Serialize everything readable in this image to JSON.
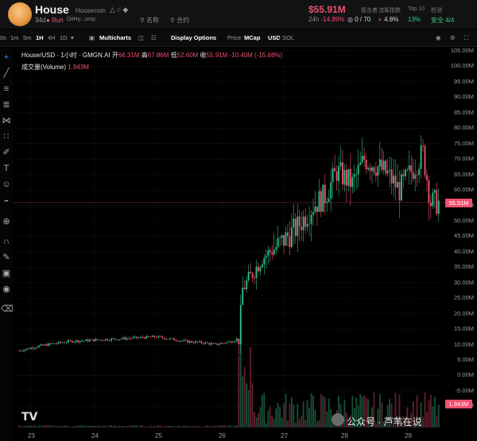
{
  "header": {
    "title": "House",
    "subtitle": "Housecoin",
    "age": "34d",
    "run_label": "Run",
    "address": "DitHy...ump",
    "search_label": "名称",
    "fav_label": "合约",
    "price": "$55.91M",
    "change_label": "24h",
    "change_value": "-14.89%",
    "stats": [
      {
        "label": "狙击者",
        "value": "0 / 70"
      },
      {
        "label": "流筹指数",
        "value": "4.8%"
      },
      {
        "label": "Top 10",
        "value": "13%"
      },
      {
        "label": "检测",
        "value": "安全 4/4"
      }
    ]
  },
  "toolbar": {
    "intervals": [
      "0s",
      "1m",
      "5m",
      "1H",
      "4H",
      "1D"
    ],
    "active_interval": "1H",
    "multicharts": "Multicharts",
    "display_options": "Display Options",
    "price_label": "Price",
    "mcap_label": "MCap",
    "usd_label": "USD",
    "sol_label": "SOL"
  },
  "legend": {
    "pair": "House/USD · 1小时 · GMGN.AI",
    "open_label": "开",
    "open": "66.31M",
    "high_label": "高",
    "high": "67.86M",
    "low_label": "低",
    "low": "52.60M",
    "close_label": "收",
    "close": "55.91M -10.40M (-15.68%)",
    "volume_label": "成交量(Volume)",
    "volume": "1.943M"
  },
  "chart_data": {
    "type": "candlestick",
    "x_ticks": [
      "23",
      "24",
      "25",
      "26",
      "27",
      "28",
      "29"
    ],
    "y_ticks": [
      "105.00M",
      "100.00M",
      "95.00M",
      "90.00M",
      "85.00M",
      "80.00M",
      "75.00M",
      "70.00M",
      "65.00M",
      "60.00M",
      "55.00M",
      "50.00M",
      "45.00M",
      "40.00M",
      "35.00M",
      "30.00M",
      "25.00M",
      "20.00M",
      "15.00M",
      "10.00M",
      "5.00M",
      "0.00M",
      "-5.00M",
      "-10.00M"
    ],
    "last_price": "55.91M",
    "last_volume": "1.943M",
    "colors": {
      "up": "#2ebd85",
      "down": "#f0506e"
    }
  },
  "watermark": "公众号 · 芦苇在说",
  "tv_logo": "TV"
}
